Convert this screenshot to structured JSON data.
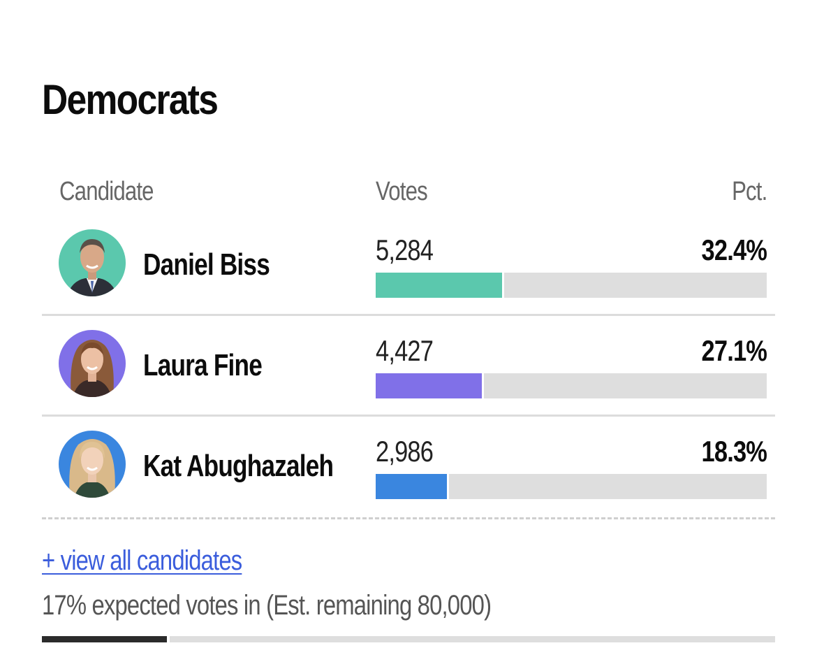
{
  "section": {
    "title": "Democrats"
  },
  "table": {
    "headers": {
      "candidate": "Candidate",
      "votes": "Votes",
      "pct": "Pct."
    },
    "rows": [
      {
        "name": "Daniel Biss",
        "votes": "5,284",
        "pct": "32.4%",
        "bar_fraction": 0.324,
        "color": "#5bc8ad",
        "avatar_bg": "#5bc8ad",
        "avatar": "daniel-biss-photo"
      },
      {
        "name": "Laura Fine",
        "votes": "4,427",
        "pct": "27.1%",
        "bar_fraction": 0.271,
        "color": "#8070e8",
        "avatar_bg": "#8070e8",
        "avatar": "laura-fine-photo"
      },
      {
        "name": "Kat Abughazaleh",
        "votes": "2,986",
        "pct": "18.3%",
        "bar_fraction": 0.183,
        "color": "#3a86df",
        "avatar_bg": "#3a86df",
        "avatar": "kat-abughazaleh-photo"
      }
    ]
  },
  "footer": {
    "view_all": "+ view all candidates",
    "expected": "17% expected votes in (Est. remaining 80,000)",
    "expected_fraction": 0.17
  },
  "colors": {
    "link": "#3b5ddc",
    "track": "#dedede",
    "progress": "#2b2b2b"
  }
}
